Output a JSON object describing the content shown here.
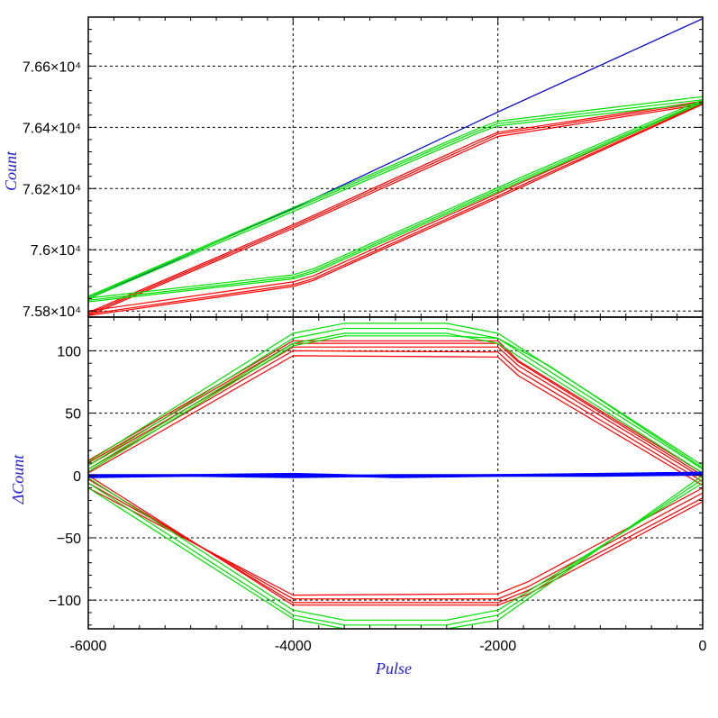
{
  "chart_data": [
    {
      "type": "line",
      "panel": "top",
      "xlabel": "",
      "ylabel": "Count",
      "xlim": [
        -6000,
        0
      ],
      "ylim": [
        75780,
        76760
      ],
      "xticks": [
        -6000,
        -4000,
        -2000,
        0
      ],
      "yticks": [
        {
          "value": 75800,
          "label": "7.58×10⁴"
        },
        {
          "value": 76000,
          "label": "7.6×10⁴"
        },
        {
          "value": 76200,
          "label": "7.62×10⁴"
        },
        {
          "value": 76400,
          "label": "7.64×10⁴"
        },
        {
          "value": 76600,
          "label": "7.66×10⁴"
        }
      ],
      "grid": true,
      "series": [
        {
          "color": "#0000cc",
          "lines": [
            {
              "x": [
                -6000,
                -4000,
                -2000,
                0
              ],
              "y": [
                75840,
                76135,
                76450,
                76755
              ]
            }
          ]
        },
        {
          "color": "#ff0000",
          "lines": [
            {
              "x": [
                -6000,
                -4000,
                -3800,
                -2000,
                -1800,
                0
              ],
              "y": [
                75785,
                75880,
                75900,
                76170,
                76200,
                76475
              ]
            },
            {
              "x": [
                -6000,
                -4000,
                -3800,
                -2000,
                -1800,
                0
              ],
              "y": [
                75790,
                75886,
                75906,
                76176,
                76206,
                76478
              ]
            },
            {
              "x": [
                -6000,
                -4000,
                -3800,
                -2000,
                -1800,
                0
              ],
              "y": [
                75800,
                75895,
                75915,
                76185,
                76215,
                76482
              ]
            },
            {
              "x": [
                -6000,
                -4000,
                -2200,
                -2000,
                0
              ],
              "y": [
                75785,
                76070,
                76340,
                76370,
                76475
              ]
            },
            {
              "x": [
                -6000,
                -4000,
                -2200,
                -2000,
                0
              ],
              "y": [
                75790,
                76076,
                76348,
                76378,
                76480
              ]
            },
            {
              "x": [
                -6000,
                -4000,
                -2200,
                -2000,
                0
              ],
              "y": [
                75795,
                76082,
                76356,
                76384,
                76485
              ]
            }
          ]
        },
        {
          "color": "#00e000",
          "lines": [
            {
              "x": [
                -6000,
                -4000,
                -3800,
                -2000,
                -1800,
                0
              ],
              "y": [
                75830,
                75905,
                75925,
                76190,
                76220,
                76480
              ]
            },
            {
              "x": [
                -6000,
                -4000,
                -3800,
                -2000,
                -1800,
                0
              ],
              "y": [
                75835,
                75911,
                75931,
                76196,
                76226,
                76484
              ]
            },
            {
              "x": [
                -6000,
                -4000,
                -3800,
                -2000,
                -1800,
                0
              ],
              "y": [
                75842,
                75918,
                75938,
                76203,
                76233,
                76490
              ]
            },
            {
              "x": [
                -6000,
                -4000,
                -2200,
                -2000,
                0
              ],
              "y": [
                75840,
                76125,
                76380,
                76405,
                76480
              ]
            },
            {
              "x": [
                -6000,
                -4000,
                -2200,
                -2000,
                0
              ],
              "y": [
                75845,
                76132,
                76388,
                76412,
                76490
              ]
            },
            {
              "x": [
                -6000,
                -4000,
                -2200,
                -2000,
                0
              ],
              "y": [
                75848,
                76138,
                76395,
                76420,
                76500
              ]
            }
          ]
        }
      ]
    },
    {
      "type": "line",
      "panel": "bottom",
      "xlabel": "Pulse",
      "ylabel": "ΔCount",
      "xlim": [
        -6000,
        0
      ],
      "ylim": [
        -123,
        127
      ],
      "xticks": [
        -6000,
        -4000,
        -2000,
        0
      ],
      "yticks": [
        {
          "value": -100,
          "label": "−100"
        },
        {
          "value": -50,
          "label": "−50"
        },
        {
          "value": 0,
          "label": "0"
        },
        {
          "value": 50,
          "label": "50"
        },
        {
          "value": 100,
          "label": "100"
        }
      ],
      "grid": true,
      "series": [
        {
          "color": "#ff0000",
          "lines": [
            {
              "x": [
                -6000,
                -4000,
                -2000,
                -1800,
                0
              ],
              "y": [
                2,
                96,
                95,
                80,
                -8
              ]
            },
            {
              "x": [
                -6000,
                -4000,
                -2000,
                -1800,
                0
              ],
              "y": [
                5,
                100,
                99,
                84,
                -5
              ]
            },
            {
              "x": [
                -6000,
                -4000,
                -2000,
                -1800,
                0
              ],
              "y": [
                8,
                103,
                103,
                88,
                -2
              ]
            },
            {
              "x": [
                -6000,
                -4000,
                -2000,
                -1800,
                0
              ],
              "y": [
                10,
                106,
                106,
                91,
                0
              ]
            },
            {
              "x": [
                -6000,
                -4000,
                -2000,
                -1800,
                0
              ],
              "y": [
                12,
                108,
                108,
                92,
                2
              ]
            },
            {
              "x": [
                -6000,
                -4000,
                -2000,
                -1700,
                0
              ],
              "y": [
                -10,
                -96,
                -95,
                -85,
                -10
              ]
            },
            {
              "x": [
                -6000,
                -4000,
                -2000,
                -1700,
                0
              ],
              "y": [
                -6,
                -99,
                -99,
                -89,
                -14
              ]
            },
            {
              "x": [
                -6000,
                -4000,
                -2000,
                -1700,
                0
              ],
              "y": [
                -3,
                -102,
                -102,
                -92,
                -18
              ]
            },
            {
              "x": [
                -6000,
                -4000,
                -2000,
                -1700,
                0
              ],
              "y": [
                0,
                -104,
                -104,
                -95,
                -21
              ]
            }
          ]
        },
        {
          "color": "#00e000",
          "lines": [
            {
              "x": [
                -6000,
                -4000,
                -3500,
                -2500,
                -2000,
                0
              ],
              "y": [
                5,
                106,
                114,
                114,
                106,
                2
              ]
            },
            {
              "x": [
                -6000,
                -4000,
                -3500,
                -2500,
                -2000,
                0
              ],
              "y": [
                8,
                110,
                118,
                118,
                110,
                5
              ]
            },
            {
              "x": [
                -6000,
                -4000,
                -3500,
                -2500,
                -2000,
                0
              ],
              "y": [
                11,
                114,
                122,
                122,
                114,
                8
              ]
            },
            {
              "x": [
                -6000,
                -4000,
                -3500,
                -2500,
                -2000,
                -1500,
                0
              ],
              "y": [
                3,
                104,
                112,
                112,
                110,
                88,
                6
              ]
            },
            {
              "x": [
                -6000,
                -4000,
                -3500,
                -2500,
                -2000,
                0
              ],
              "y": [
                -2,
                -108,
                -116,
                -116,
                -108,
                -6
              ]
            },
            {
              "x": [
                -6000,
                -4000,
                -3500,
                -2500,
                -2000,
                0
              ],
              "y": [
                -6,
                -112,
                -120,
                -120,
                -112,
                -3
              ]
            },
            {
              "x": [
                -6000,
                -4000,
                -3500,
                -2500,
                -2000,
                0
              ],
              "y": [
                -10,
                -115,
                -123,
                -123,
                -116,
                0
              ]
            }
          ]
        },
        {
          "color": "#0000ff",
          "lines": [
            {
              "x": [
                -6000,
                -5000,
                -4000,
                -3000,
                -2000,
                -1000,
                0
              ],
              "y": [
                0,
                0,
                -1,
                0,
                0,
                1,
                2
              ]
            },
            {
              "x": [
                -6000,
                -5000,
                -4000,
                -3000,
                -2000,
                -1000,
                0
              ],
              "y": [
                -1,
                0,
                1,
                -1,
                0,
                0,
                1
              ]
            }
          ]
        }
      ]
    }
  ]
}
